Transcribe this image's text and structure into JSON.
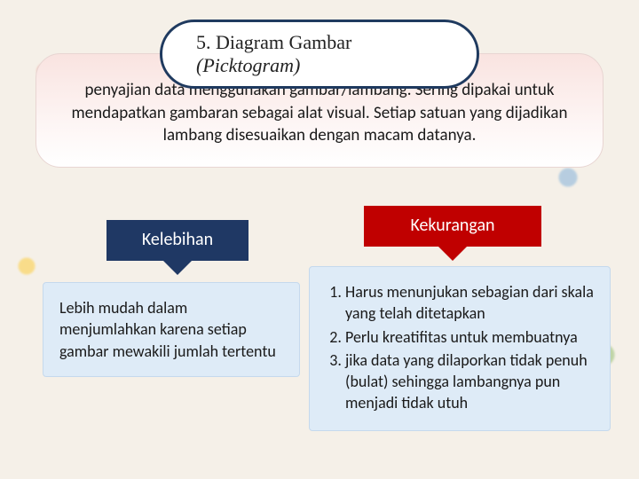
{
  "title": {
    "prefix": "5. Diagram Gambar ",
    "italic": "(Picktogram)"
  },
  "description": "penyajian data menggunakan gambar/lambang. Sering dipakai untuk mendapatkan gambaran sebagai alat visual. Setiap satuan yang dijadikan lambang disesuaikan dengan macam datanya.",
  "tags": {
    "kelebihan": "Kelebihan",
    "kekurangan": "Kekurangan"
  },
  "kelebihan_text": "Lebih mudah dalam menjumlahkan karena setiap gambar mewakili jumlah tertentu",
  "kekurangan_items": [
    "Harus menunjukan sebagian dari skala yang telah ditetapkan",
    "Perlu kreatifitas untuk membuatnya",
    "jika data yang dilaporkan tidak penuh (bulat) sehingga lambangnya pun menjadi tidak utuh"
  ],
  "colors": {
    "navy": "#1f3864",
    "red": "#c00000",
    "box_fill": "#deebf7",
    "desc_top": "#f9e3e0"
  }
}
